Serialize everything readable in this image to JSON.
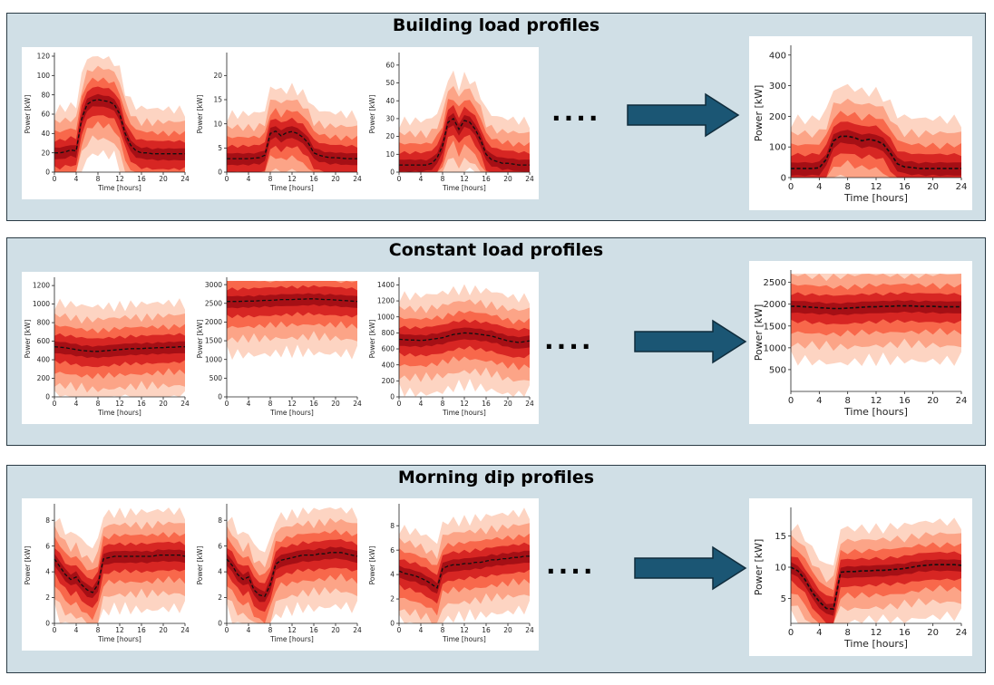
{
  "panels": [
    {
      "title": "Building load profiles",
      "charts": [
        {
          "type": "area",
          "ylabel": "Power [kW]",
          "xlabel": "Time [hours]",
          "ylim": [
            0,
            120
          ],
          "yticks": [
            0,
            20,
            40,
            60,
            80,
            100,
            120
          ],
          "xticks": [
            0,
            4,
            8,
            12,
            16,
            20,
            24
          ],
          "median": [
            20,
            20,
            21,
            23,
            22,
            55,
            70,
            74,
            75,
            74,
            73,
            70,
            60,
            40,
            28,
            22,
            20,
            20,
            19,
            19,
            19,
            19,
            19,
            19,
            19
          ]
        },
        {
          "type": "area",
          "ylabel": "Power [kW]",
          "xlabel": "Time [hours]",
          "ylim": [
            0,
            24
          ],
          "yticks": [
            0,
            5,
            10,
            15,
            20
          ],
          "xticks": [
            0,
            4,
            8,
            12,
            16,
            20,
            24
          ],
          "median": [
            2.8,
            2.8,
            2.8,
            2.8,
            2.8,
            2.9,
            3,
            3.5,
            8,
            8.5,
            7.5,
            8.2,
            8.4,
            8,
            7.2,
            6,
            4,
            3.5,
            3.2,
            3,
            3,
            2.9,
            2.8,
            2.8,
            2.8
          ]
        },
        {
          "type": "area",
          "ylabel": "Power [kW]",
          "xlabel": "Time [hours]",
          "ylim": [
            0,
            65
          ],
          "yticks": [
            0,
            10,
            20,
            30,
            40,
            50,
            60
          ],
          "xticks": [
            0,
            4,
            8,
            12,
            16,
            20,
            24
          ],
          "median": [
            4,
            4,
            4,
            4,
            4,
            4,
            5,
            8,
            15,
            28,
            30,
            24,
            29,
            28,
            24,
            18,
            10,
            7,
            6,
            5,
            5,
            4.5,
            4,
            4,
            4
          ]
        }
      ],
      "aggregate": {
        "type": "area",
        "ylabel": "Power [kW]",
        "xlabel": "Time [hours]",
        "ylim": [
          0,
          420
        ],
        "yticks": [
          0,
          100,
          200,
          300,
          400
        ],
        "xticks": [
          0,
          4,
          8,
          12,
          16,
          20,
          24
        ],
        "median": [
          30,
          30,
          30,
          30,
          32,
          60,
          120,
          135,
          135,
          130,
          120,
          125,
          120,
          110,
          80,
          45,
          35,
          33,
          30,
          30,
          30,
          30,
          30,
          30,
          30
        ]
      }
    },
    {
      "title": "Constant load profiles",
      "charts": [
        {
          "type": "area",
          "ylabel": "Power [kW]",
          "xlabel": "Time [hours]",
          "ylim": [
            0,
            1250
          ],
          "yticks": [
            0,
            200,
            400,
            600,
            800,
            1000,
            1200
          ],
          "xticks": [
            0,
            4,
            8,
            12,
            16,
            20,
            24
          ],
          "median": [
            540,
            535,
            530,
            520,
            510,
            500,
            495,
            490,
            490,
            495,
            500,
            505,
            510,
            515,
            520,
            520,
            520,
            525,
            525,
            530,
            530,
            535,
            535,
            540,
            540
          ]
        },
        {
          "type": "area",
          "ylabel": "Power [kW]",
          "xlabel": "Time [hours]",
          "ylim": [
            0,
            3100
          ],
          "yticks": [
            0,
            500,
            1000,
            1500,
            2000,
            2500,
            3000
          ],
          "xticks": [
            0,
            4,
            8,
            12,
            16,
            20,
            24
          ],
          "median": [
            2550,
            2550,
            2550,
            2555,
            2560,
            2560,
            2570,
            2580,
            2580,
            2590,
            2600,
            2600,
            2600,
            2610,
            2610,
            2620,
            2620,
            2610,
            2600,
            2600,
            2590,
            2580,
            2570,
            2560,
            2550
          ]
        },
        {
          "type": "area",
          "ylabel": "Power [kW]",
          "xlabel": "Time [hours]",
          "ylim": [
            0,
            1450
          ],
          "yticks": [
            0,
            200,
            400,
            600,
            800,
            1000,
            1200,
            1400
          ],
          "xticks": [
            0,
            4,
            8,
            12,
            16,
            20,
            24
          ],
          "median": [
            720,
            715,
            710,
            710,
            705,
            710,
            720,
            730,
            740,
            760,
            780,
            790,
            800,
            795,
            790,
            780,
            770,
            760,
            740,
            720,
            700,
            690,
            680,
            690,
            700
          ]
        }
      ],
      "aggregate": {
        "type": "area",
        "ylabel": "Power [kW]",
        "xlabel": "Time [hours]",
        "ylim": [
          0,
          2700
        ],
        "yticks": [
          500,
          1000,
          1500,
          2000,
          2500
        ],
        "xticks": [
          0,
          4,
          8,
          12,
          16,
          20,
          24
        ],
        "median": [
          1950,
          1950,
          1940,
          1930,
          1920,
          1910,
          1900,
          1900,
          1910,
          1920,
          1930,
          1940,
          1940,
          1950,
          1950,
          1960,
          1960,
          1960,
          1950,
          1950,
          1950,
          1940,
          1940,
          1940,
          1940
        ]
      }
    },
    {
      "title": "Morning dip profiles",
      "charts": [
        {
          "type": "area",
          "ylabel": "Power [kW]",
          "xlabel": "Time [hours]",
          "ylim": [
            0,
            9
          ],
          "yticks": [
            0,
            2,
            4,
            6,
            8
          ],
          "xticks": [
            0,
            4,
            8,
            12,
            16,
            20,
            24
          ],
          "median": [
            5,
            4.4,
            3.8,
            3.4,
            3.6,
            3,
            2.6,
            2.4,
            3,
            5,
            5.1,
            5.2,
            5.2,
            5.2,
            5.2,
            5.2,
            5.2,
            5.2,
            5.2,
            5.3,
            5.3,
            5.3,
            5.3,
            5.3,
            5.2
          ]
        },
        {
          "type": "area",
          "ylabel": "Power [kW]",
          "xlabel": "Time [hours]",
          "ylim": [
            0,
            9
          ],
          "yticks": [
            0,
            2,
            4,
            6,
            8
          ],
          "xticks": [
            0,
            4,
            8,
            12,
            16,
            20,
            24
          ],
          "median": [
            5,
            4.5,
            3.8,
            3.4,
            3.6,
            2.6,
            2.2,
            2.1,
            3,
            4.6,
            4.9,
            5,
            5.1,
            5.2,
            5.3,
            5.3,
            5.3,
            5.4,
            5.4,
            5.5,
            5.5,
            5.5,
            5.4,
            5.3,
            5.2
          ]
        },
        {
          "type": "area",
          "ylabel": "Power [kW]",
          "xlabel": "Time [hours]",
          "ylim": [
            0,
            9.5
          ],
          "yticks": [
            0,
            2,
            4,
            6,
            8
          ],
          "xticks": [
            0,
            4,
            8,
            12,
            16,
            20,
            24
          ],
          "median": [
            4.3,
            4.1,
            4,
            3.9,
            3.7,
            3.5,
            3.2,
            2.9,
            4.5,
            4.7,
            4.8,
            4.8,
            4.9,
            4.9,
            5,
            5,
            5.1,
            5.2,
            5.2,
            5.3,
            5.3,
            5.4,
            5.4,
            5.5,
            5.5
          ]
        }
      ],
      "aggregate": {
        "type": "area",
        "ylabel": "Power [kW]",
        "xlabel": "Time [hours]",
        "ylim": [
          1,
          19
        ],
        "yticks": [
          5,
          10,
          15
        ],
        "xticks": [
          0,
          4,
          8,
          12,
          16,
          20,
          24
        ],
        "median": [
          10,
          9.4,
          8,
          6,
          4.5,
          3.4,
          3.3,
          9.2,
          9.3,
          9.3,
          9.4,
          9.4,
          9.5,
          9.5,
          9.6,
          9.7,
          9.8,
          10,
          10.2,
          10.3,
          10.4,
          10.4,
          10.4,
          10.4,
          10.3
        ]
      }
    }
  ],
  "ellipsis": "....",
  "colors": {
    "band1": "#fdd4c2",
    "band2": "#fca487",
    "band3": "#f8684b",
    "band4": "#d72623",
    "band5": "#a50f15",
    "median": "#111111",
    "arrow": "#1b5674",
    "arrowStroke": "#102d3d"
  }
}
